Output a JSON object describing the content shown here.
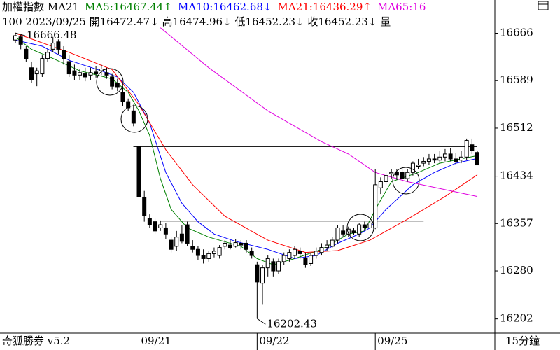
{
  "header": {
    "title": "加權指數 MA21",
    "line2": "100 2023/09/25 開16472.47↓ 高16474.96↓ 低16452.23↓ 收16452.23↓ 量"
  },
  "footer": {
    "left": "奇狐勝券 v5.2",
    "right": "15分鐘"
  },
  "chart_data": {
    "type": "candlestick",
    "ylim": [
      16180,
      16720
    ],
    "yticks": [
      16666,
      16589,
      16512,
      16434,
      16357,
      16280,
      16202
    ],
    "up_color": "#ffffff",
    "down_color": "#000000",
    "open": [
      16655,
      16660,
      16640,
      16610,
      16600,
      16600,
      16625,
      16640,
      16652,
      16638,
      16620,
      16605,
      16598,
      16600,
      16598,
      16603,
      16605,
      16602,
      16595,
      16585,
      16570,
      16555,
      16540,
      16482,
      16400,
      16365,
      16360,
      16350,
      16350,
      16330,
      16320,
      16340,
      16355,
      16320,
      16315,
      16305,
      16300,
      16308,
      16305,
      16320,
      16322,
      16320,
      16325,
      16325,
      16312,
      16290,
      16260,
      16285,
      16295,
      16280,
      16295,
      16300,
      16305,
      16312,
      16300,
      16292,
      16305,
      16310,
      16318,
      16320,
      16330,
      16345,
      16340,
      16345,
      16340,
      16355,
      16350,
      16350,
      16415,
      16425,
      16438,
      16440,
      16440,
      16430,
      16440,
      16450,
      16455,
      16458,
      16462,
      16460,
      16465,
      16470,
      16462,
      16460,
      16465,
      16485,
      16472.47
    ],
    "high": [
      16666.48,
      16663,
      16645,
      16620,
      16610,
      16630,
      16640,
      16660,
      16656,
      16645,
      16630,
      16615,
      16608,
      16610,
      16610,
      16612,
      16615,
      16610,
      16600,
      16592,
      16580,
      16560,
      16550,
      16485,
      16410,
      16372,
      16365,
      16362,
      16358,
      16335,
      16345,
      16355,
      16360,
      16330,
      16320,
      16315,
      16312,
      16318,
      16322,
      16330,
      16330,
      16332,
      16330,
      16330,
      16318,
      16295,
      16290,
      16305,
      16300,
      16300,
      16310,
      16315,
      16320,
      16318,
      16310,
      16310,
      16318,
      16325,
      16330,
      16335,
      16355,
      16355,
      16352,
      16350,
      16358,
      16360,
      16362,
      16445,
      16432,
      16440,
      16445,
      16445,
      16448,
      16445,
      16458,
      16462,
      16465,
      16470,
      16470,
      16475,
      16478,
      16480,
      16472,
      16475,
      16495,
      16495,
      16474.96
    ],
    "low": [
      16650,
      16640,
      16620,
      16585,
      16580,
      16595,
      16620,
      16635,
      16632,
      16615,
      16595,
      16590,
      16590,
      16588,
      16590,
      16594,
      16598,
      16592,
      16575,
      16572,
      16548,
      16540,
      16515,
      16398,
      16360,
      16350,
      16340,
      16345,
      16332,
      16310,
      16312,
      16325,
      16320,
      16310,
      16298,
      16292,
      16295,
      16302,
      16300,
      16315,
      16315,
      16318,
      16315,
      16310,
      16300,
      16202.43,
      16225,
      16270,
      16270,
      16275,
      16290,
      16295,
      16300,
      16300,
      16285,
      16288,
      16300,
      16305,
      16312,
      16318,
      16325,
      16335,
      16335,
      16338,
      16335,
      16345,
      16345,
      16348,
      16405,
      16420,
      16430,
      16428,
      16425,
      16425,
      16435,
      16445,
      16450,
      16452,
      16455,
      16455,
      16458,
      16458,
      16452,
      16455,
      16460,
      16470,
      16452.23
    ],
    "close": [
      16662,
      16648,
      16625,
      16590,
      16605,
      16625,
      16635,
      16650,
      16640,
      16625,
      16600,
      16598,
      16602,
      16595,
      16602,
      16600,
      16608,
      16598,
      16580,
      16578,
      16555,
      16545,
      16520,
      16400,
      16370,
      16355,
      16345,
      16355,
      16340,
      16315,
      16335,
      16328,
      16325,
      16315,
      16305,
      16300,
      16308,
      16312,
      16318,
      16325,
      16318,
      16326,
      16322,
      16315,
      16305,
      16262,
      16285,
      16300,
      16280,
      16295,
      16305,
      16310,
      16315,
      16308,
      16290,
      16305,
      16312,
      16318,
      16322,
      16330,
      16350,
      16340,
      16348,
      16342,
      16355,
      16350,
      16358,
      16420,
      16425,
      16435,
      16440,
      16436,
      16430,
      16440,
      16455,
      16452,
      16458,
      16462,
      16460,
      16465,
      16470,
      16462,
      16458,
      16465,
      16492,
      16475,
      16452.23
    ],
    "series": [
      {
        "name": "MA5:16467.44",
        "arrow": "↑",
        "color": "#008000",
        "x": [
          0,
          3,
          7,
          12,
          18,
          21,
          23,
          25,
          27,
          29,
          32,
          36,
          42,
          45,
          48,
          52,
          57,
          62,
          65,
          67,
          70,
          75,
          79,
          83,
          86
        ],
        "values": [
          16660,
          16640,
          16625,
          16605,
          16592,
          16570,
          16540,
          16500,
          16430,
          16380,
          16350,
          16335,
          16320,
          16300,
          16290,
          16300,
          16315,
          16340,
          16345,
          16380,
          16425,
          16440,
          16455,
          16462,
          16467.44
        ]
      },
      {
        "name": "MA10:16462.68",
        "arrow": "↓",
        "color": "#0000ff",
        "x": [
          0,
          5,
          10,
          16,
          19,
          22,
          25,
          28,
          31,
          34,
          37,
          41,
          47,
          52,
          56,
          60,
          64,
          66,
          69,
          74,
          78,
          82,
          86
        ],
        "values": [
          16655,
          16645,
          16622,
          16605,
          16595,
          16570,
          16520,
          16440,
          16390,
          16360,
          16340,
          16328,
          16315,
          16300,
          16305,
          16325,
          16340,
          16350,
          16380,
          16420,
          16440,
          16455,
          16462.68
        ]
      },
      {
        "name": "MA21:16436.29",
        "arrow": "↑",
        "color": "#ff0000",
        "x": [
          0,
          10,
          18,
          23,
          28,
          33,
          39,
          47,
          54,
          60,
          66,
          73,
          80,
          86
        ],
        "values": [
          16666,
          16635,
          16607,
          16550,
          16477,
          16420,
          16369,
          16330,
          16310,
          16313,
          16330,
          16364,
          16401,
          16436.29
        ]
      },
      {
        "name": "MA65:16",
        "color": "#e000e0",
        "x": [
          27,
          36,
          47,
          57,
          62,
          67,
          73,
          80,
          86
        ],
        "values": [
          16675,
          16610,
          16540,
          16490,
          16470,
          16440,
          16425,
          16412,
          16401
        ]
      }
    ],
    "hlines": [
      {
        "value": 16482,
        "x": [
          23,
          86
        ]
      },
      {
        "value": 16361,
        "x": [
          28,
          76
        ]
      }
    ],
    "annotations": [
      {
        "value": 16666.48,
        "x": 0
      },
      {
        "value": 16202.43,
        "x": 45
      }
    ],
    "xlabels": [
      {
        "label": "09/21",
        "x": 23
      },
      {
        "label": "09/22",
        "x": 45
      },
      {
        "label": "09/25",
        "x": 67
      }
    ]
  }
}
